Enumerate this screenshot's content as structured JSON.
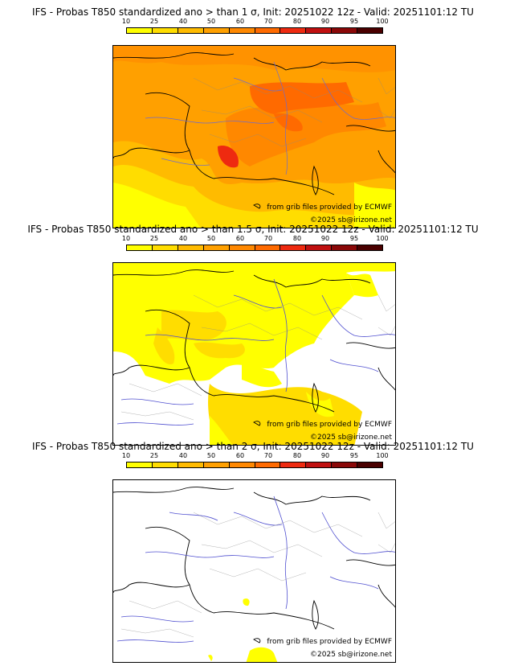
{
  "colorbar": {
    "ticks": [
      "10",
      "25",
      "40",
      "50",
      "60",
      "70",
      "80",
      "90",
      "95",
      "100"
    ],
    "colors": [
      "#ffff00",
      "#ffdd00",
      "#ffbb00",
      "#ffa000",
      "#ff8800",
      "#ff6a00",
      "#ee2a10",
      "#c01010",
      "#8a0808",
      "#4a0000"
    ]
  },
  "panels": [
    {
      "title": "IFS - Probas T850  standardized ano > than 1 σ, Init: 20251022 12z - Valid: 20251101:12 TU",
      "grib": "from grib files provided by ECMWF",
      "copyright": "©2025 sb@irizone.net"
    },
    {
      "title": "IFS - Probas T850  standardized ano > than 1.5 σ, Init: 20251022 12z - Valid: 20251101:12 TU",
      "grib": "from grib files provided by ECMWF",
      "copyright": "©2025 sb@irizone.net"
    },
    {
      "title": "IFS - Probas T850  standardized ano > than 2 σ, Init: 20251022 12z - Valid: 20251101:12 TU",
      "grib": "from grib files provided by ECMWF",
      "copyright": "©2025 sb@irizone.net"
    }
  ]
}
